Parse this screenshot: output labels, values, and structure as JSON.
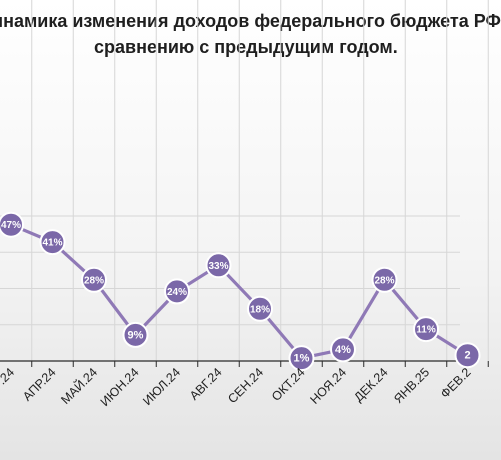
{
  "title_line1": "инамика изменения доходов федерального бюджета РФ",
  "title_line2": "сравнению с предыдущим годом.",
  "colors": {
    "line": "#8f79b6",
    "marker_fill": "#7b68a8",
    "marker_stroke": "#ffffff",
    "grid": "#d6d6d6",
    "axis": "#2a2a2a"
  },
  "chart_data": {
    "type": "line",
    "title": "инамика изменения доходов федерального бюджета РФ сравнению с предыдущим годом.",
    "categories": [
      ".24",
      "АПР.24",
      "МАЙ.24",
      "ИЮН.24",
      "ИЮЛ.24",
      "АВГ.24",
      "СЕН.24",
      "ОКТ.24",
      "НОЯ.24",
      "ДЕК.24",
      "ЯНВ.25",
      "ФЕВ.2"
    ],
    "values": [
      47,
      41,
      28,
      9,
      24,
      33,
      18,
      1,
      4,
      28,
      11,
      2
    ],
    "data_labels": [
      "47%",
      "41%",
      "28%",
      "9%",
      "24%",
      "33%",
      "18%",
      "1%",
      "4%",
      "28%",
      "11%",
      "2"
    ],
    "xlabel": "",
    "ylabel": "",
    "ylim": [
      0,
      60
    ],
    "grid": true,
    "legend": "none"
  }
}
